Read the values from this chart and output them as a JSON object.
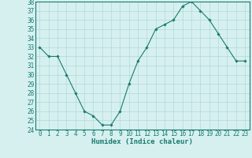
{
  "x": [
    0,
    1,
    2,
    3,
    4,
    5,
    6,
    7,
    8,
    9,
    10,
    11,
    12,
    13,
    14,
    15,
    16,
    17,
    18,
    19,
    20,
    21,
    22,
    23
  ],
  "y": [
    33,
    32,
    32,
    30,
    28,
    26,
    25.5,
    24.5,
    24.5,
    26,
    29,
    31.5,
    33,
    35,
    35.5,
    36,
    37.5,
    38,
    37,
    36,
    34.5,
    33,
    31.5,
    31.5
  ],
  "line_color": "#1a7a6e",
  "marker": "D",
  "marker_size": 1.8,
  "bg_color": "#d6f0f0",
  "grid_color": "#b0d8d8",
  "xlabel": "Humidex (Indice chaleur)",
  "ylabel": "",
  "ylim": [
    24,
    38
  ],
  "yticks": [
    24,
    25,
    26,
    27,
    28,
    29,
    30,
    31,
    32,
    33,
    34,
    35,
    36,
    37,
    38
  ],
  "xticks": [
    0,
    1,
    2,
    3,
    4,
    5,
    6,
    7,
    8,
    9,
    10,
    11,
    12,
    13,
    14,
    15,
    16,
    17,
    18,
    19,
    20,
    21,
    22,
    23
  ],
  "tick_color": "#1a7a6e",
  "label_fontsize": 6.5,
  "tick_fontsize": 5.5,
  "linewidth": 0.8
}
